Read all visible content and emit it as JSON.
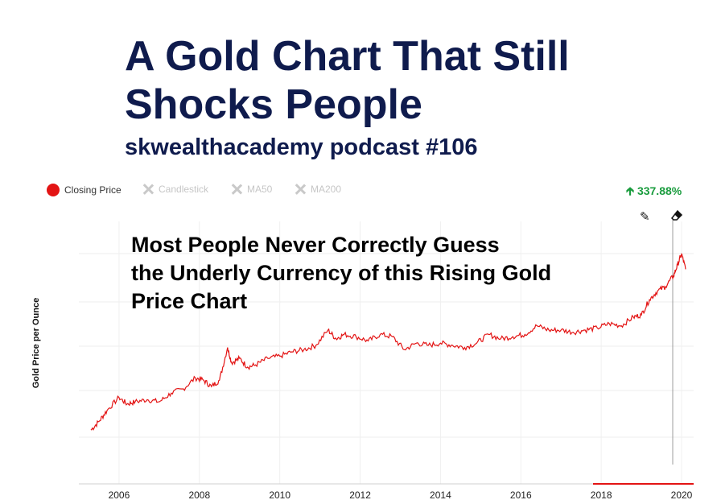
{
  "header": {
    "title_line1": "A Gold Chart That Still",
    "title_line2": "Shocks People",
    "subtitle": "skwealthacademy podcast #106"
  },
  "toolbar": {
    "items": [
      {
        "label": "Closing Price",
        "active": true
      },
      {
        "label": "Candlestick",
        "active": false
      },
      {
        "label": "MA50",
        "active": false
      },
      {
        "label": "MA200",
        "active": false
      }
    ],
    "change": "337.88%",
    "change_color": "#1a9c3e"
  },
  "overlay": {
    "line1": "Most People Never Correctly Guess",
    "line2": "the Underly Currency of this Rising Gold",
    "line3": "Price Chart"
  },
  "chart_data": {
    "type": "line",
    "ylabel": "Gold Price per Ounce",
    "xlabel": "",
    "x_ticks": [
      "2006",
      "2008",
      "2010",
      "2012",
      "2014",
      "2016",
      "2018",
      "2020"
    ],
    "xlim": [
      2005.0,
      2020.3
    ],
    "grid": true,
    "line_color": "#e31414",
    "series": [
      {
        "x": [
          2005.3,
          2005.5,
          2005.7,
          2006.0,
          2006.2,
          2006.4,
          2006.7,
          2007.0,
          2007.3,
          2007.6,
          2007.9,
          2008.1,
          2008.3,
          2008.5,
          2008.7,
          2008.8,
          2009.0,
          2009.2,
          2009.4,
          2009.7,
          2010.0,
          2010.3,
          2010.6,
          2010.9,
          2011.2,
          2011.4,
          2011.6,
          2011.9,
          2012.2,
          2012.5,
          2012.8,
          2013.1,
          2013.4,
          2013.7,
          2014.0,
          2014.3,
          2014.6,
          2014.9,
          2015.2,
          2015.5,
          2015.8,
          2016.1,
          2016.4,
          2016.7,
          2017.0,
          2017.3,
          2017.6,
          2017.9,
          2018.2,
          2018.5,
          2018.8,
          2019.0,
          2019.2,
          2019.4,
          2019.6,
          2019.8,
          2019.9,
          2020.0,
          2020.1
        ],
        "y": [
          0.04,
          0.08,
          0.13,
          0.19,
          0.16,
          0.17,
          0.18,
          0.17,
          0.21,
          0.23,
          0.28,
          0.27,
          0.24,
          0.27,
          0.42,
          0.35,
          0.37,
          0.33,
          0.34,
          0.37,
          0.38,
          0.4,
          0.41,
          0.43,
          0.5,
          0.46,
          0.48,
          0.47,
          0.45,
          0.48,
          0.47,
          0.41,
          0.44,
          0.43,
          0.44,
          0.43,
          0.42,
          0.44,
          0.48,
          0.46,
          0.47,
          0.48,
          0.52,
          0.5,
          0.5,
          0.49,
          0.5,
          0.51,
          0.53,
          0.52,
          0.56,
          0.57,
          0.64,
          0.68,
          0.7,
          0.75,
          0.8,
          0.85,
          0.78
        ]
      }
    ]
  }
}
